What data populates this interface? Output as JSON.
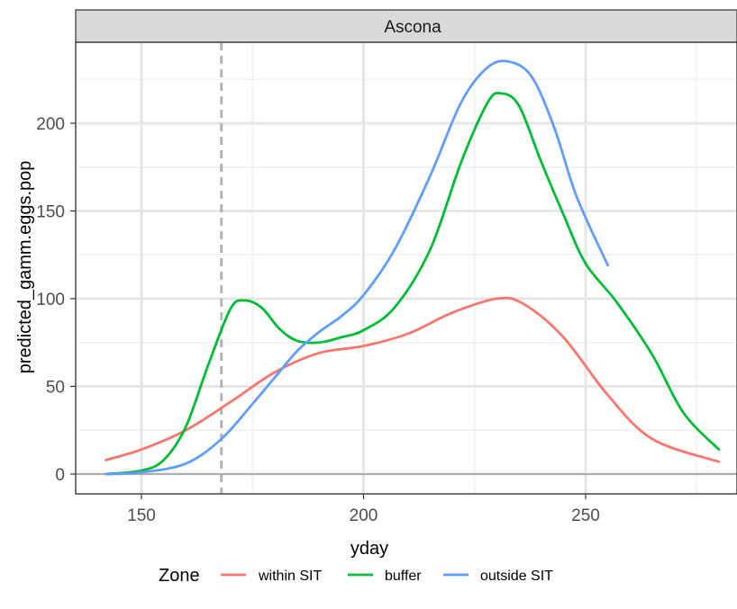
{
  "chart_data": {
    "type": "line",
    "facet": "Ascona",
    "xlabel": "yday",
    "ylabel": "predicted_gamm.eggs.pop",
    "xlim": [
      137,
      283
    ],
    "ylim": [
      -10,
      245
    ],
    "x_ticks": [
      150,
      200,
      250
    ],
    "y_ticks": [
      0,
      50,
      100,
      150,
      200
    ],
    "grid": true,
    "vline": 168,
    "hline": 0,
    "legend": {
      "title": "Zone",
      "position": "bottom"
    },
    "series": [
      {
        "name": "within SIT",
        "color": "#F8766D",
        "x": [
          142,
          150,
          160,
          170,
          180,
          190,
          200,
          210,
          220,
          230,
          236,
          245,
          255,
          265,
          280
        ],
        "y": [
          8,
          14,
          25,
          41,
          58,
          69,
          73,
          80,
          92,
          100,
          97,
          78,
          45,
          20,
          7
        ]
      },
      {
        "name": "buffer",
        "color": "#00BA38",
        "x": [
          142,
          150,
          155,
          160,
          165,
          170,
          173,
          177,
          181,
          185,
          190,
          195,
          200,
          207,
          215,
          222,
          228,
          231,
          235,
          240,
          245,
          250,
          257,
          265,
          272,
          280
        ],
        "y": [
          0,
          2,
          8,
          27,
          62,
          94,
          99,
          95,
          83,
          76,
          75,
          78,
          82,
          95,
          128,
          178,
          212,
          217,
          210,
          178,
          148,
          120,
          98,
          68,
          35,
          14
        ]
      },
      {
        "name": "outside SIT",
        "color": "#619CFF",
        "x": [
          142,
          150,
          160,
          168,
          175,
          180,
          185,
          190,
          195,
          200,
          207,
          215,
          222,
          228,
          233,
          238,
          243,
          248,
          255
        ],
        "y": [
          0,
          1,
          6,
          20,
          40,
          55,
          70,
          81,
          90,
          102,
          128,
          170,
          212,
          232,
          235,
          226,
          197,
          158,
          119
        ]
      }
    ]
  }
}
